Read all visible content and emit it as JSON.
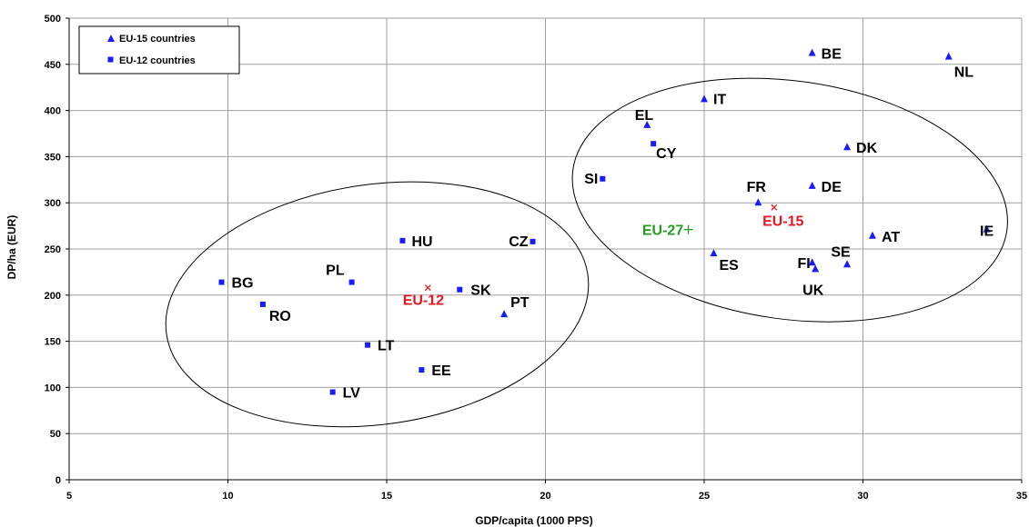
{
  "chart_data": {
    "type": "scatter",
    "xlabel": "GDP/capita (1000 PPS)",
    "ylabel": "DP/ha (EUR)",
    "xlim": [
      5,
      35
    ],
    "ylim": [
      0,
      500
    ],
    "xticks": [
      5,
      10,
      15,
      20,
      25,
      30,
      35
    ],
    "yticks": [
      0,
      50,
      100,
      150,
      200,
      250,
      300,
      350,
      400,
      450,
      500
    ],
    "grid": true,
    "legend_position": "top-left",
    "colors": {
      "marker": "#1a1aff",
      "aggregate_eu": "#e8141e",
      "aggregate_eu27": "#239b23",
      "axis": "#000000",
      "grid": "#a0a0a0"
    },
    "series": [
      {
        "name": "EU-15 countries",
        "marker": "triangle",
        "points": [
          {
            "label": "BE",
            "x": 28.4,
            "y": 462
          },
          {
            "label": "NL",
            "x": 32.7,
            "y": 458
          },
          {
            "label": "IT",
            "x": 25.0,
            "y": 412
          },
          {
            "label": "EL",
            "x": 23.2,
            "y": 384
          },
          {
            "label": "DK",
            "x": 29.5,
            "y": 360
          },
          {
            "label": "DE",
            "x": 28.4,
            "y": 318
          },
          {
            "label": "FR",
            "x": 26.7,
            "y": 300
          },
          {
            "label": "IE",
            "x": 33.9,
            "y": 271
          },
          {
            "label": "AT",
            "x": 30.3,
            "y": 264
          },
          {
            "label": "ES",
            "x": 25.3,
            "y": 245
          },
          {
            "label": "FI",
            "x": 28.4,
            "y": 235
          },
          {
            "label": "SE",
            "x": 29.5,
            "y": 233
          },
          {
            "label": "UK",
            "x": 28.5,
            "y": 228
          },
          {
            "label": "PT",
            "x": 18.7,
            "y": 179
          }
        ]
      },
      {
        "name": "EU-12 countries",
        "marker": "square",
        "points": [
          {
            "label": "CY",
            "x": 23.4,
            "y": 364
          },
          {
            "label": "SI",
            "x": 21.8,
            "y": 326
          },
          {
            "label": "CZ",
            "x": 19.6,
            "y": 258
          },
          {
            "label": "HU",
            "x": 15.5,
            "y": 259
          },
          {
            "label": "BG",
            "x": 9.8,
            "y": 214
          },
          {
            "label": "PL",
            "x": 13.9,
            "y": 214
          },
          {
            "label": "SK",
            "x": 17.3,
            "y": 206
          },
          {
            "label": "RO",
            "x": 11.1,
            "y": 190
          },
          {
            "label": "LT",
            "x": 14.4,
            "y": 146
          },
          {
            "label": "EE",
            "x": 16.1,
            "y": 119
          },
          {
            "label": "LV",
            "x": 13.3,
            "y": 95
          }
        ]
      }
    ],
    "aggregates": [
      {
        "label": "EU-15",
        "x": 27.2,
        "y": 295,
        "marker": "x",
        "color": "red"
      },
      {
        "label": "EU-12",
        "x": 16.3,
        "y": 208,
        "marker": "x",
        "color": "red"
      },
      {
        "label": "EU-27",
        "x": 24.5,
        "y": 271,
        "marker": "plus",
        "color": "green"
      }
    ],
    "ellipses": [
      {
        "cx": 27.7,
        "cy": 303,
        "rx": 6.9,
        "ry": 129,
        "rotation_deg": 8
      },
      {
        "cx": 14.7,
        "cy": 190,
        "rx": 6.7,
        "ry": 130,
        "rotation_deg": -8
      }
    ]
  }
}
